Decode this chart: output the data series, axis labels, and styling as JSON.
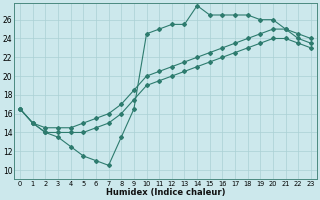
{
  "xlabel": "Humidex (Indice chaleur)",
  "xlim": [
    -0.5,
    23.5
  ],
  "ylim": [
    9.0,
    27.8
  ],
  "xticks": [
    0,
    1,
    2,
    3,
    4,
    5,
    6,
    7,
    8,
    9,
    10,
    11,
    12,
    13,
    14,
    15,
    16,
    17,
    18,
    19,
    20,
    21,
    22,
    23
  ],
  "yticks": [
    10,
    12,
    14,
    16,
    18,
    20,
    22,
    24,
    26
  ],
  "bg_color": "#cce8ec",
  "grid_color": "#aad0d4",
  "line_color": "#2d7b6e",
  "line1_x": [
    0,
    1,
    2,
    3,
    4,
    5,
    6,
    7,
    8,
    9,
    10,
    11,
    12,
    13,
    14,
    15,
    16,
    17,
    18,
    19,
    20,
    21,
    22,
    23
  ],
  "line1_y": [
    16.5,
    15.0,
    14.0,
    13.5,
    12.5,
    11.5,
    11.0,
    10.5,
    13.5,
    16.5,
    24.5,
    25.0,
    25.5,
    25.5,
    27.5,
    26.5,
    26.5,
    26.5,
    26.5,
    26.0,
    26.0,
    25.0,
    24.0,
    23.5
  ],
  "line2_x": [
    0,
    1,
    2,
    3,
    4,
    5,
    6,
    7,
    8,
    9,
    10,
    11,
    12,
    13,
    14,
    15,
    16,
    17,
    18,
    19,
    20,
    21,
    22,
    23
  ],
  "line2_y": [
    16.5,
    15.0,
    14.0,
    14.0,
    14.0,
    14.0,
    14.5,
    15.0,
    16.0,
    17.5,
    19.0,
    19.5,
    20.0,
    20.5,
    21.0,
    21.5,
    22.0,
    22.5,
    23.0,
    23.5,
    24.0,
    24.0,
    23.5,
    23.0
  ],
  "line3_x": [
    0,
    1,
    2,
    3,
    4,
    5,
    6,
    7,
    8,
    9,
    10,
    11,
    12,
    13,
    14,
    15,
    16,
    17,
    18,
    19,
    20,
    21,
    22,
    23
  ],
  "line3_y": [
    16.5,
    15.0,
    14.5,
    14.5,
    14.5,
    15.0,
    15.5,
    16.0,
    17.0,
    18.5,
    20.0,
    20.5,
    21.0,
    21.5,
    22.0,
    22.5,
    23.0,
    23.5,
    24.0,
    24.5,
    25.0,
    25.0,
    24.5,
    24.0
  ]
}
